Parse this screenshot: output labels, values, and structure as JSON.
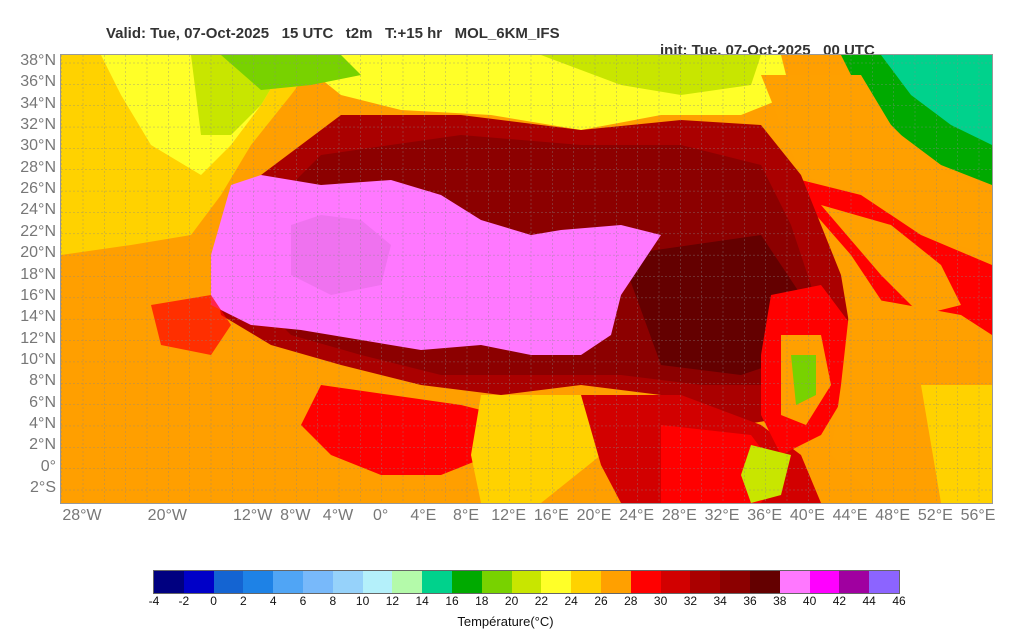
{
  "title": {
    "valid": "Valid: Tue, 07-Oct-2025   15 UTC   t2m   T:+15 hr   MOL_6KM_IFS",
    "init": "init: Tue, 07-Oct-2025   00 UTC"
  },
  "lat_labels": [
    "38°N",
    "36°N",
    "34°N",
    "32°N",
    "30°N",
    "28°N",
    "26°N",
    "24°N",
    "22°N",
    "20°N",
    "18°N",
    "16°N",
    "14°N",
    "12°N",
    "10°N",
    "8°N",
    "6°N",
    "4°N",
    "2°N",
    "0°",
    "2°S"
  ],
  "lon_labels": [
    "28°W",
    "20°W",
    "12°W",
    "8°W",
    "4°W",
    "0°",
    "4°E",
    "8°E",
    "12°E",
    "16°E",
    "20°E",
    "24°E",
    "28°E",
    "32°E",
    "36°E",
    "40°E",
    "44°E",
    "48°E",
    "52°E",
    "56°E"
  ],
  "colorbar": {
    "ticks": [
      "-4",
      "-2",
      "0",
      "2",
      "4",
      "6",
      "8",
      "10",
      "12",
      "14",
      "16",
      "18",
      "20",
      "22",
      "24",
      "26",
      "28",
      "30",
      "32",
      "34",
      "36",
      "38",
      "40",
      "42",
      "44",
      "46"
    ],
    "colors": [
      "#000080",
      "#0000c8",
      "#1464d2",
      "#1e82e6",
      "#50a5f5",
      "#78b9fa",
      "#96d2fa",
      "#b4f0fa",
      "#b4faaa",
      "#00d28c",
      "#00aa00",
      "#78d200",
      "#c8e600",
      "#ffff28",
      "#ffd200",
      "#ffa000",
      "#ff0000",
      "#d20000",
      "#aa0000",
      "#8c0000",
      "#640000",
      "#ff78ff",
      "#ff00ff",
      "#a000a0",
      "#8c64ff"
    ],
    "label": "Température(°C)"
  }
}
